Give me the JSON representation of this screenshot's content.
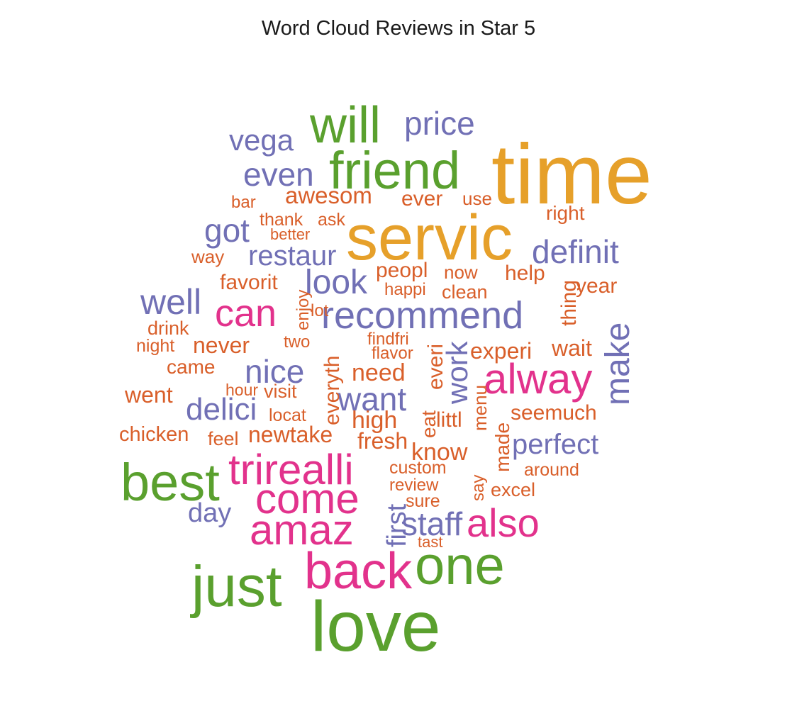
{
  "chart_data": {
    "type": "wordcloud",
    "title": "Word Cloud Reviews in Star 5",
    "colors": {
      "orange": "#E6A02A",
      "green": "#5AA02E",
      "purple": "#7170B5",
      "pink": "#E2328C",
      "red_orange": "#D95F2A"
    },
    "words": [
      {
        "text": "time",
        "color": "orange",
        "rotated": false
      },
      {
        "text": "servic",
        "color": "orange",
        "rotated": false
      },
      {
        "text": "love",
        "color": "green",
        "rotated": false
      },
      {
        "text": "friend",
        "color": "green",
        "rotated": false
      },
      {
        "text": "will",
        "color": "green",
        "rotated": false
      },
      {
        "text": "one",
        "color": "green",
        "rotated": false
      },
      {
        "text": "just",
        "color": "green",
        "rotated": false
      },
      {
        "text": "best",
        "color": "green",
        "rotated": false
      },
      {
        "text": "back",
        "color": "pink",
        "rotated": false
      },
      {
        "text": "amaz",
        "color": "pink",
        "rotated": false
      },
      {
        "text": "also",
        "color": "pink",
        "rotated": false
      },
      {
        "text": "trirealli",
        "color": "pink",
        "rotated": false
      },
      {
        "text": "come",
        "color": "pink",
        "rotated": false
      },
      {
        "text": "alway",
        "color": "pink",
        "rotated": false
      },
      {
        "text": "can",
        "color": "pink",
        "rotated": false
      },
      {
        "text": "recommend",
        "color": "purple",
        "rotated": false
      },
      {
        "text": "price",
        "color": "purple",
        "rotated": false
      },
      {
        "text": "definit",
        "color": "purple",
        "rotated": false
      },
      {
        "text": "even",
        "color": "purple",
        "rotated": false
      },
      {
        "text": "vega",
        "color": "purple",
        "rotated": false
      },
      {
        "text": "well",
        "color": "purple",
        "rotated": false
      },
      {
        "text": "look",
        "color": "purple",
        "rotated": false
      },
      {
        "text": "got",
        "color": "purple",
        "rotated": false
      },
      {
        "text": "restaur",
        "color": "purple",
        "rotated": false
      },
      {
        "text": "make",
        "color": "purple",
        "rotated": true
      },
      {
        "text": "nice",
        "color": "purple",
        "rotated": false
      },
      {
        "text": "want",
        "color": "purple",
        "rotated": false
      },
      {
        "text": "work",
        "color": "purple",
        "rotated": true
      },
      {
        "text": "delici",
        "color": "purple",
        "rotated": false
      },
      {
        "text": "perfect",
        "color": "purple",
        "rotated": false
      },
      {
        "text": "staff",
        "color": "purple",
        "rotated": false
      },
      {
        "text": "first",
        "color": "purple",
        "rotated": true
      },
      {
        "text": "day",
        "color": "purple",
        "rotated": false
      },
      {
        "text": "awesom",
        "color": "red_orange",
        "rotated": false
      },
      {
        "text": "ever",
        "color": "red_orange",
        "rotated": false
      },
      {
        "text": "use",
        "color": "red_orange",
        "rotated": false
      },
      {
        "text": "right",
        "color": "red_orange",
        "rotated": false
      },
      {
        "text": "bar",
        "color": "red_orange",
        "rotated": false
      },
      {
        "text": "thank",
        "color": "red_orange",
        "rotated": false
      },
      {
        "text": "ask",
        "color": "red_orange",
        "rotated": false
      },
      {
        "text": "better",
        "color": "red_orange",
        "rotated": false
      },
      {
        "text": "way",
        "color": "red_orange",
        "rotated": false
      },
      {
        "text": "favorit",
        "color": "red_orange",
        "rotated": false
      },
      {
        "text": "peopl",
        "color": "red_orange",
        "rotated": false
      },
      {
        "text": "now",
        "color": "red_orange",
        "rotated": false
      },
      {
        "text": "help",
        "color": "red_orange",
        "rotated": false
      },
      {
        "text": "happi",
        "color": "red_orange",
        "rotated": false
      },
      {
        "text": "clean",
        "color": "red_orange",
        "rotated": false
      },
      {
        "text": "year",
        "color": "red_orange",
        "rotated": false
      },
      {
        "text": "thing",
        "color": "red_orange",
        "rotated": true
      },
      {
        "text": "enjoy",
        "color": "red_orange",
        "rotated": true
      },
      {
        "text": "lot",
        "color": "red_orange",
        "rotated": false
      },
      {
        "text": "drink",
        "color": "red_orange",
        "rotated": false
      },
      {
        "text": "night",
        "color": "red_orange",
        "rotated": false
      },
      {
        "text": "never",
        "color": "red_orange",
        "rotated": false
      },
      {
        "text": "two",
        "color": "red_orange",
        "rotated": false
      },
      {
        "text": "findfri",
        "color": "red_orange",
        "rotated": false
      },
      {
        "text": "flavor",
        "color": "red_orange",
        "rotated": false
      },
      {
        "text": "everi",
        "color": "red_orange",
        "rotated": true
      },
      {
        "text": "experi",
        "color": "red_orange",
        "rotated": false
      },
      {
        "text": "wait",
        "color": "red_orange",
        "rotated": false
      },
      {
        "text": "came",
        "color": "red_orange",
        "rotated": false
      },
      {
        "text": "need",
        "color": "red_orange",
        "rotated": false
      },
      {
        "text": "everyth",
        "color": "red_orange",
        "rotated": true
      },
      {
        "text": "went",
        "color": "red_orange",
        "rotated": false
      },
      {
        "text": "hour",
        "color": "red_orange",
        "rotated": false
      },
      {
        "text": "visit",
        "color": "red_orange",
        "rotated": false
      },
      {
        "text": "locat",
        "color": "red_orange",
        "rotated": false
      },
      {
        "text": "high",
        "color": "red_orange",
        "rotated": false
      },
      {
        "text": "eat",
        "color": "red_orange",
        "rotated": true
      },
      {
        "text": "littl",
        "color": "red_orange",
        "rotated": false
      },
      {
        "text": "menu",
        "color": "red_orange",
        "rotated": true
      },
      {
        "text": "seemuch",
        "color": "red_orange",
        "rotated": false
      },
      {
        "text": "chicken",
        "color": "red_orange",
        "rotated": false
      },
      {
        "text": "feel",
        "color": "red_orange",
        "rotated": false
      },
      {
        "text": "newtake",
        "color": "red_orange",
        "rotated": false
      },
      {
        "text": "fresh",
        "color": "red_orange",
        "rotated": false
      },
      {
        "text": "know",
        "color": "red_orange",
        "rotated": false
      },
      {
        "text": "made",
        "color": "red_orange",
        "rotated": true
      },
      {
        "text": "custom",
        "color": "red_orange",
        "rotated": false
      },
      {
        "text": "around",
        "color": "red_orange",
        "rotated": false
      },
      {
        "text": "review",
        "color": "red_orange",
        "rotated": false
      },
      {
        "text": "say",
        "color": "red_orange",
        "rotated": true
      },
      {
        "text": "excel",
        "color": "red_orange",
        "rotated": false
      },
      {
        "text": "sure",
        "color": "red_orange",
        "rotated": false
      },
      {
        "text": "tast",
        "color": "red_orange",
        "rotated": false
      }
    ]
  }
}
